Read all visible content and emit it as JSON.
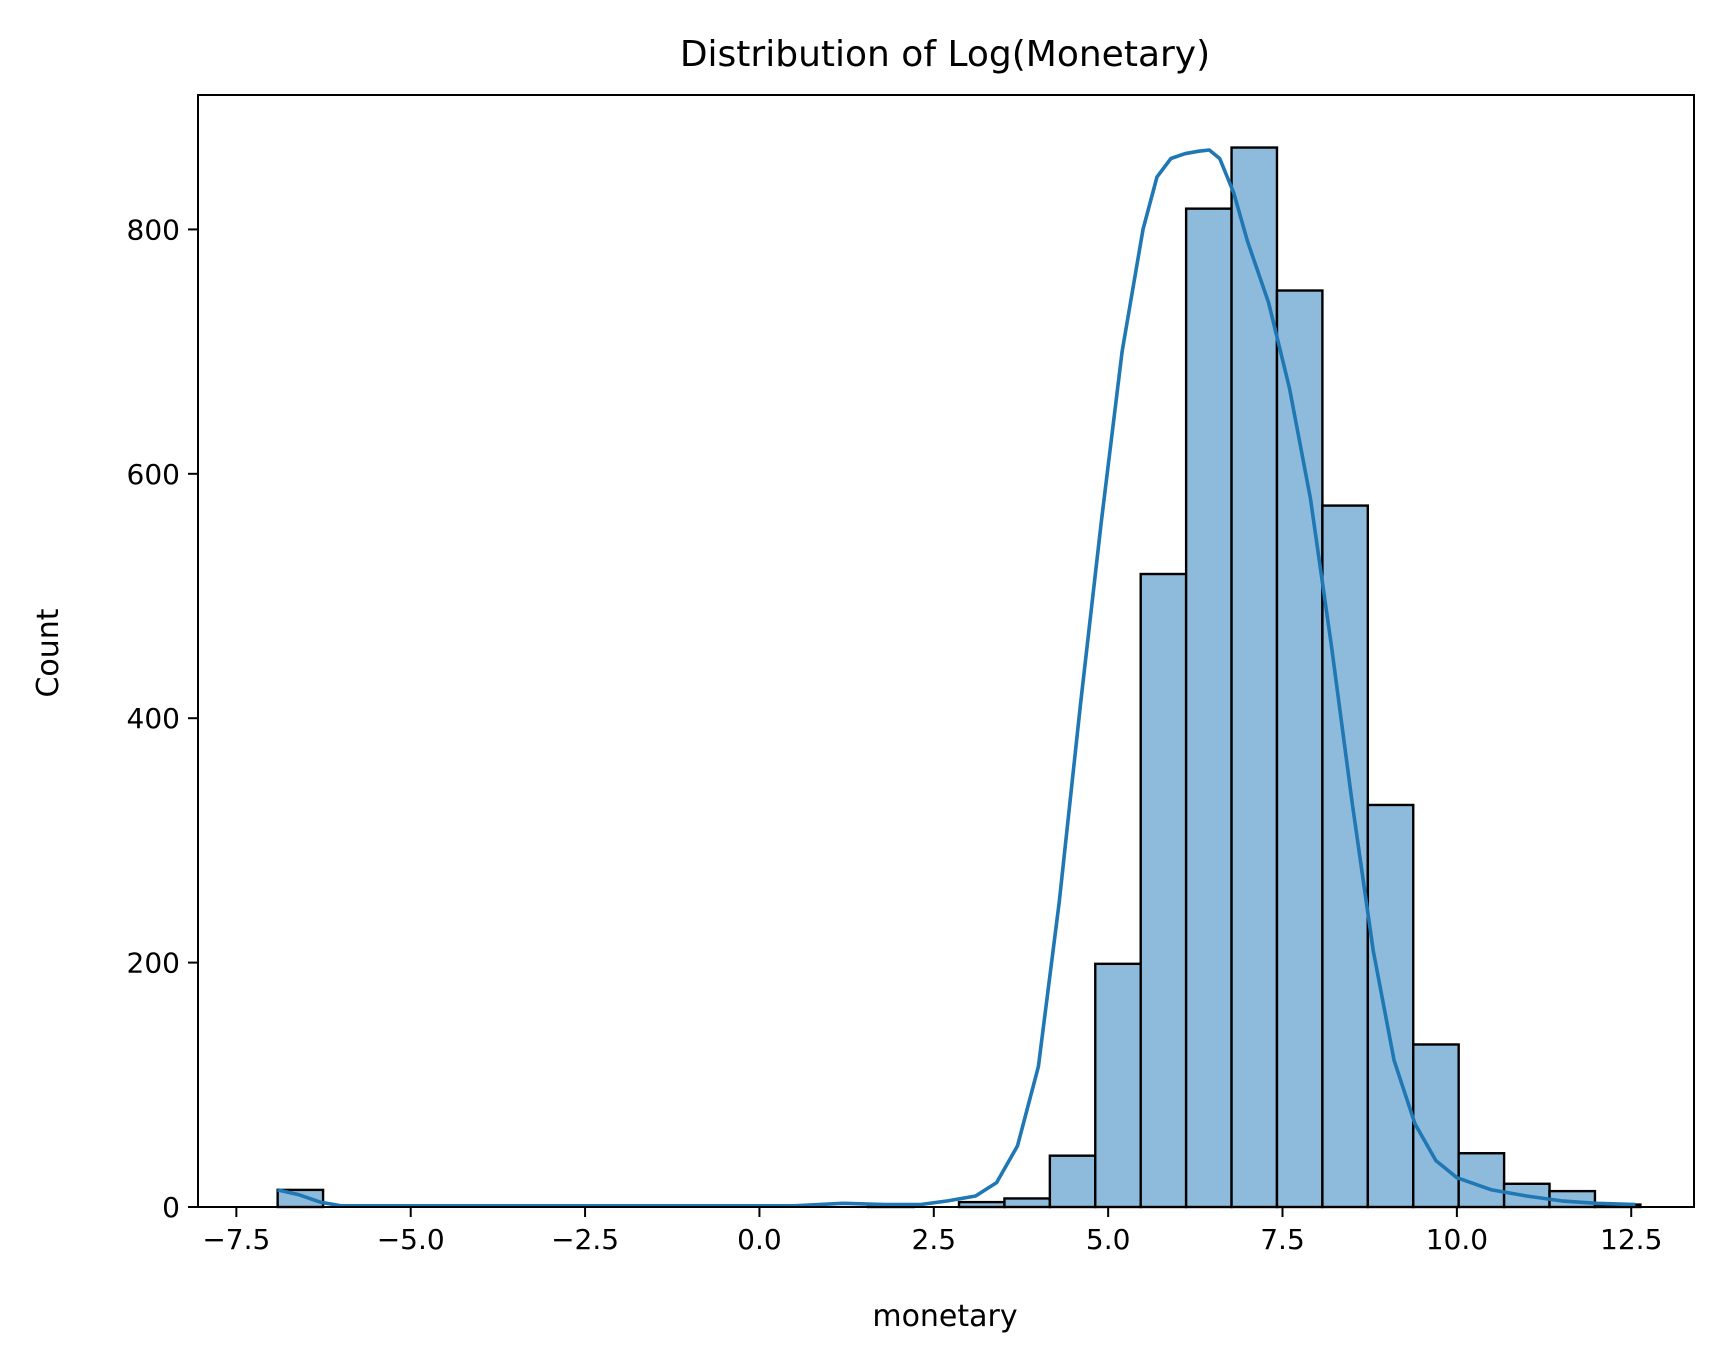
{
  "chart_data": {
    "type": "bar",
    "title": "Distribution of Log(Monetary)",
    "xlabel": "monetary",
    "ylabel": "Count",
    "xlim": [
      -8.05,
      13.4
    ],
    "ylim": [
      0,
      910
    ],
    "xticks": [
      -7.5,
      -5.0,
      -2.5,
      0.0,
      2.5,
      5.0,
      7.5,
      10.0,
      12.5
    ],
    "xtick_labels": [
      "−7.5",
      "−5.0",
      "−2.5",
      "0.0",
      "2.5",
      "5.0",
      "7.5",
      "10.0",
      "12.5"
    ],
    "yticks": [
      0,
      200,
      400,
      600,
      800
    ],
    "ytick_labels": [
      "0",
      "200",
      "400",
      "600",
      "800"
    ],
    "grid": false,
    "legend": "none",
    "bin_start": -6.908,
    "bin_width": 0.6513,
    "counts": [
      14,
      0,
      0,
      0,
      0,
      0,
      0,
      0,
      0,
      0,
      0,
      0,
      0,
      1,
      0,
      4,
      7,
      42,
      199,
      518,
      817,
      867,
      750,
      574,
      329,
      133,
      44,
      19,
      13,
      2
    ],
    "kde": {
      "x": [
        -6.91,
        -6.6,
        -6.3,
        -6.0,
        -5.0,
        -3.0,
        -1.0,
        0.5,
        1.2,
        1.8,
        2.3,
        2.7,
        3.1,
        3.4,
        3.7,
        4.0,
        4.3,
        4.6,
        4.9,
        5.2,
        5.5,
        5.7,
        5.9,
        6.1,
        6.3,
        6.45,
        6.6,
        6.8,
        7.0,
        7.3,
        7.6,
        7.9,
        8.2,
        8.5,
        8.8,
        9.1,
        9.4,
        9.7,
        10.0,
        10.5,
        11.0,
        11.5,
        12.0,
        12.56
      ],
      "y": [
        14,
        10,
        4,
        1,
        1,
        1,
        1,
        1,
        3,
        2,
        2,
        5,
        9,
        20,
        50,
        115,
        250,
        410,
        560,
        700,
        800,
        843,
        858,
        862,
        864,
        865,
        858,
        830,
        790,
        740,
        670,
        580,
        460,
        330,
        210,
        120,
        68,
        38,
        24,
        14,
        9,
        5,
        3,
        2
      ]
    },
    "colors": {
      "bar_fill": "#8ebbdb",
      "bar_edge": "#000000",
      "kde_line": "#1f77b4",
      "axes": "#000000"
    }
  }
}
